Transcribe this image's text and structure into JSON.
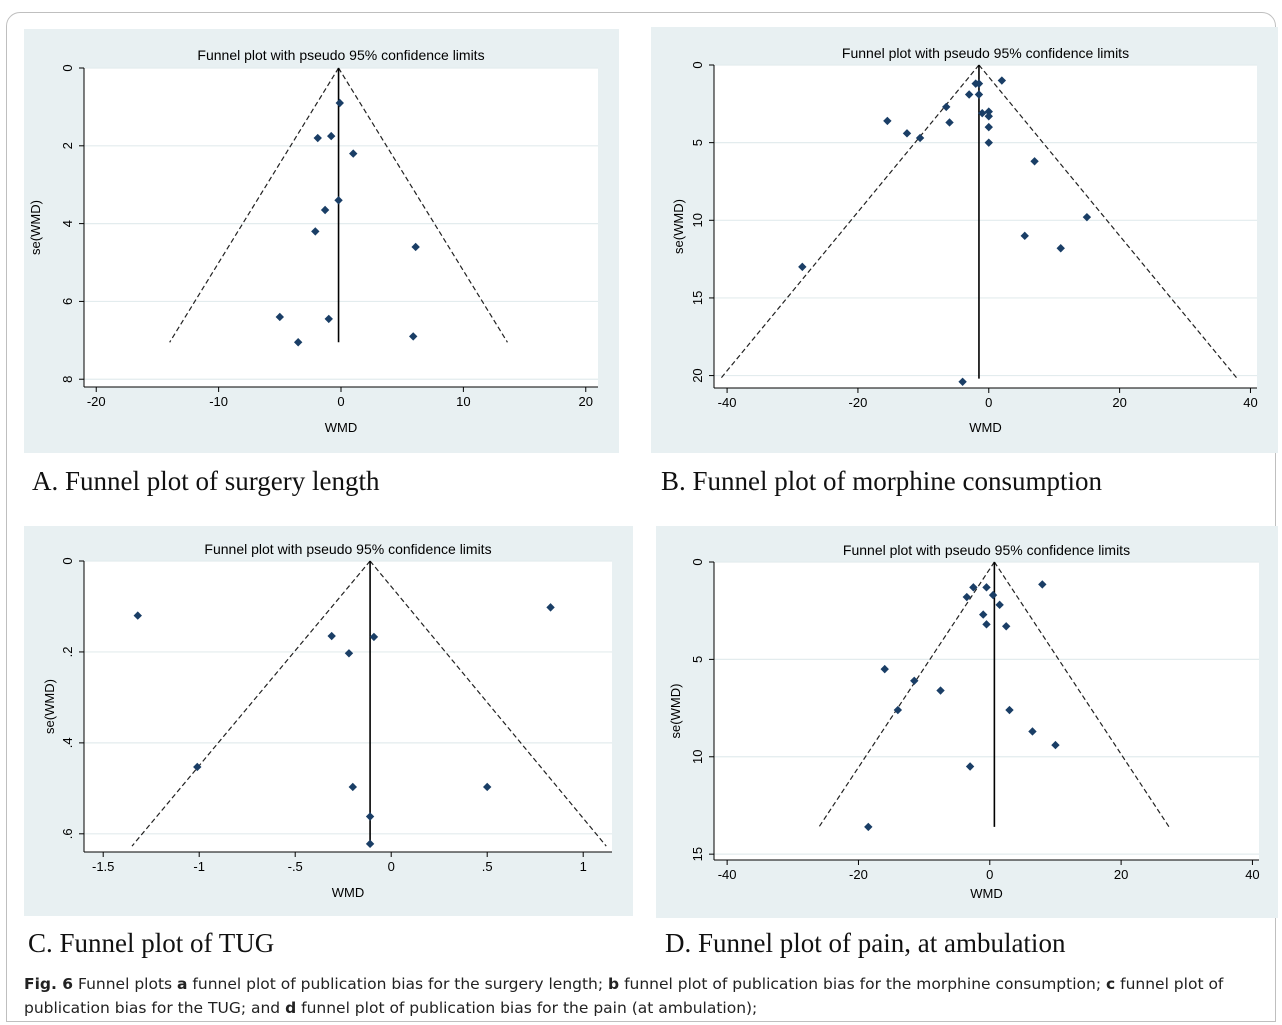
{
  "figure_caption": {
    "label": "Fig. 6",
    "parts": [
      {
        "text": "  Funnel plots ",
        "bold": false
      },
      {
        "text": "a",
        "bold": true
      },
      {
        "text": " funnel plot of publication bias for the surgery length; ",
        "bold": false
      },
      {
        "text": "b",
        "bold": true
      },
      {
        "text": " funnel plot of publication bias for the morphine consumption; ",
        "bold": false
      },
      {
        "text": "c",
        "bold": true
      },
      {
        "text": " funnel plot of publication bias for the TUG; and ",
        "bold": false
      },
      {
        "text": "d",
        "bold": true
      },
      {
        "text": " funnel plot of publication bias for the pain (at ambulation);",
        "bold": false
      }
    ]
  },
  "chart_data": [
    {
      "type": "scatter",
      "panel_caption": "A. Funnel plot of surgery length",
      "title": "Funnel plot with pseudo 95% confidence limits",
      "xlabel": "WMD",
      "ylabel": "se(WMD)",
      "xlim": [
        -21,
        21
      ],
      "ylim": [
        8.2,
        0
      ],
      "y_reversed": true,
      "xticks": [
        -20,
        -10,
        0,
        10,
        20
      ],
      "xtick_labels": [
        "-20",
        "-10",
        "0",
        "10",
        "20"
      ],
      "yticks": [
        0,
        2,
        4,
        6,
        8
      ],
      "ytick_labels": [
        "0",
        "2",
        "4",
        "6",
        "8"
      ],
      "pooled_estimate": -0.2,
      "funnel": {
        "apex": [
          -0.2,
          0
        ],
        "bottom_se": 7.05,
        "bottom_left": -14.0,
        "bottom_right": 13.6
      },
      "points": [
        {
          "x": -0.1,
          "y": 0.9
        },
        {
          "x": -1.9,
          "y": 1.8
        },
        {
          "x": -0.8,
          "y": 1.75
        },
        {
          "x": 1.0,
          "y": 2.2
        },
        {
          "x": -0.2,
          "y": 3.4
        },
        {
          "x": -1.3,
          "y": 3.65
        },
        {
          "x": -2.1,
          "y": 4.2
        },
        {
          "x": 6.1,
          "y": 4.6
        },
        {
          "x": -5.0,
          "y": 6.4
        },
        {
          "x": -1.0,
          "y": 6.45
        },
        {
          "x": -3.5,
          "y": 7.05
        },
        {
          "x": 5.9,
          "y": 6.9
        }
      ]
    },
    {
      "type": "scatter",
      "panel_caption": "B. Funnel plot of morphine consumption",
      "title": "Funnel plot with pseudo 95% confidence limits",
      "xlabel": "WMD",
      "ylabel": "se(WMD)",
      "xlim": [
        -42,
        41
      ],
      "ylim": [
        20.8,
        0
      ],
      "y_reversed": true,
      "xticks": [
        -40,
        -20,
        0,
        20,
        40
      ],
      "xtick_labels": [
        "-40",
        "-20",
        "0",
        "20",
        "40"
      ],
      "yticks": [
        0,
        5,
        10,
        15,
        20
      ],
      "ytick_labels": [
        "0",
        "5",
        "10",
        "15",
        "20"
      ],
      "pooled_estimate": -1.5,
      "funnel": {
        "apex": [
          -1.5,
          0
        ],
        "bottom_se": 20.2,
        "bottom_left": -41.0,
        "bottom_right": 38.0
      },
      "points": [
        {
          "x": 2.0,
          "y": 1.0
        },
        {
          "x": -2.0,
          "y": 1.2
        },
        {
          "x": -1.5,
          "y": 1.2
        },
        {
          "x": -3.0,
          "y": 1.9
        },
        {
          "x": -1.5,
          "y": 1.9
        },
        {
          "x": -6.5,
          "y": 2.7
        },
        {
          "x": -15.5,
          "y": 3.6
        },
        {
          "x": -6.0,
          "y": 3.7
        },
        {
          "x": -1.0,
          "y": 3.1
        },
        {
          "x": 0.0,
          "y": 3.0
        },
        {
          "x": 0.0,
          "y": 3.3
        },
        {
          "x": 0.0,
          "y": 4.0
        },
        {
          "x": -12.5,
          "y": 4.4
        },
        {
          "x": -10.5,
          "y": 4.7
        },
        {
          "x": 0.0,
          "y": 5.0
        },
        {
          "x": 7.0,
          "y": 6.2
        },
        {
          "x": 15.0,
          "y": 9.8
        },
        {
          "x": 5.5,
          "y": 11.0
        },
        {
          "x": 11.0,
          "y": 11.8
        },
        {
          "x": -28.5,
          "y": 13.0
        },
        {
          "x": -4.0,
          "y": 20.4
        }
      ]
    },
    {
      "type": "scatter",
      "panel_caption": "C. Funnel plot of TUG",
      "title": "Funnel plot with pseudo 95% confidence limits",
      "xlabel": "WMD",
      "ylabel": "se(WMD)",
      "xlim": [
        -1.6,
        1.15
      ],
      "ylim": [
        0.64,
        0
      ],
      "y_reversed": true,
      "xticks": [
        -1.5,
        -1,
        -0.5,
        0,
        0.5,
        1
      ],
      "xtick_labels": [
        "-1.5",
        "-1",
        "-.5",
        "0",
        ".5",
        "1"
      ],
      "yticks": [
        0,
        0.2,
        0.4,
        0.6
      ],
      "ytick_labels": [
        "0",
        ".2",
        ".4",
        ".6"
      ],
      "pooled_estimate": -0.11,
      "funnel": {
        "apex": [
          -0.11,
          0
        ],
        "bottom_se": 0.627,
        "bottom_left": -1.35,
        "bottom_right": 1.12
      },
      "points": [
        {
          "x": -1.32,
          "y": 0.12
        },
        {
          "x": 0.83,
          "y": 0.102
        },
        {
          "x": -0.31,
          "y": 0.165
        },
        {
          "x": -0.09,
          "y": 0.167
        },
        {
          "x": -0.22,
          "y": 0.203
        },
        {
          "x": -1.01,
          "y": 0.453
        },
        {
          "x": -0.2,
          "y": 0.497
        },
        {
          "x": 0.5,
          "y": 0.497
        },
        {
          "x": -0.11,
          "y": 0.562
        },
        {
          "x": -0.11,
          "y": 0.622
        }
      ]
    },
    {
      "type": "scatter",
      "panel_caption": "D. Funnel plot of pain, at ambulation",
      "title": "Funnel plot with pseudo 95% confidence limits",
      "xlabel": "WMD",
      "ylabel": "se(WMD)",
      "xlim": [
        -42,
        41
      ],
      "ylim": [
        15.3,
        0
      ],
      "y_reversed": true,
      "xticks": [
        -40,
        -20,
        0,
        20,
        40
      ],
      "xtick_labels": [
        "-40",
        "-20",
        "0",
        "20",
        "40"
      ],
      "yticks": [
        0,
        5,
        10,
        15
      ],
      "ytick_labels": [
        "0",
        "5",
        "10",
        "15"
      ],
      "pooled_estimate": 0.7,
      "funnel": {
        "apex": [
          0.7,
          0
        ],
        "bottom_se": 13.6,
        "bottom_left": -26.0,
        "bottom_right": 27.3
      },
      "points": [
        {
          "x": -2.5,
          "y": 1.3
        },
        {
          "x": -0.5,
          "y": 1.3
        },
        {
          "x": 8.0,
          "y": 1.15
        },
        {
          "x": -3.5,
          "y": 1.8
        },
        {
          "x": 0.5,
          "y": 1.7
        },
        {
          "x": 1.5,
          "y": 2.2
        },
        {
          "x": -1.0,
          "y": 2.7
        },
        {
          "x": -0.5,
          "y": 3.2
        },
        {
          "x": 2.5,
          "y": 3.3
        },
        {
          "x": -16.0,
          "y": 5.5
        },
        {
          "x": -11.5,
          "y": 6.1
        },
        {
          "x": -7.5,
          "y": 6.6
        },
        {
          "x": -14.0,
          "y": 7.6
        },
        {
          "x": 3.0,
          "y": 7.6
        },
        {
          "x": 6.5,
          "y": 8.7
        },
        {
          "x": 10.0,
          "y": 9.4
        },
        {
          "x": -3.0,
          "y": 10.5
        },
        {
          "x": -18.5,
          "y": 13.6
        }
      ]
    }
  ]
}
